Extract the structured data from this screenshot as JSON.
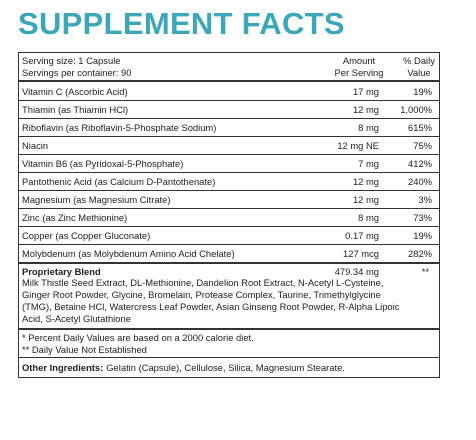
{
  "title": "SUPPLEMENT FACTS",
  "serving": {
    "size": "Serving size: 1 Capsule",
    "per_container": "Servings per container: 90"
  },
  "columns": {
    "amount": [
      "Amount",
      "Per Serving"
    ],
    "daily": [
      "% Daily",
      "Value"
    ]
  },
  "rows": [
    [
      "Vitamin C (Ascorbic Acid)",
      "17 mg",
      "19%"
    ],
    [
      "Thiamin (as Thiamin HCl)",
      "12 mg",
      "1,000%"
    ],
    [
      "Riboflavin (as Riboflavin-5-Phosphate Sodium)",
      "8 mg",
      "615%"
    ],
    [
      "Niacin",
      "12 mg NE",
      "75%"
    ],
    [
      "Vitamin B6 (as Pyridoxal-5-Phosphate)",
      "7 mg",
      "412%"
    ],
    [
      "Pantothenic Acid (as Calcium D-Pantothenate)",
      "12 mg",
      "240%"
    ],
    [
      "Magnesium (as Magnesium Citrate)",
      "12 mg",
      "3%"
    ],
    [
      "Zinc (as Zinc Methionine)",
      "8 mg",
      "73%"
    ],
    [
      "Copper (as Copper Gluconate)",
      "0.17 mg",
      "19%"
    ],
    [
      "Molybdenum (as Molybdenum Amino Acid Chelate)",
      "127 mcg",
      "282%"
    ]
  ],
  "blend": {
    "name": "Proprietary Blend",
    "amount": "479.34 mg",
    "dv": "**",
    "ingredients": [
      "Milk Thistle Seed Extract, DL-Methionine, Dandelion Root Extract, N-Acetyl L-Cysteine,",
      "Ginger Root Powder, Glycine, Bromelain, Protease Complex, Taurine, Trimethylglycine",
      "(TMG), Betaine HCl, Watercress Leaf Powder, Asian Ginseng Root Powder, R-Alpha Lipoic",
      "Acid, S-Acetyl Glutathione"
    ]
  },
  "footnotes": [
    "* Percent Daily Values are based on a 2000 calorie diet.",
    "** Daily Value Not Established"
  ],
  "other": {
    "label": "Other Ingredients:",
    "text": "Gelatin (Capsule), Cellulose, Silica, Magnesium Stearate."
  }
}
